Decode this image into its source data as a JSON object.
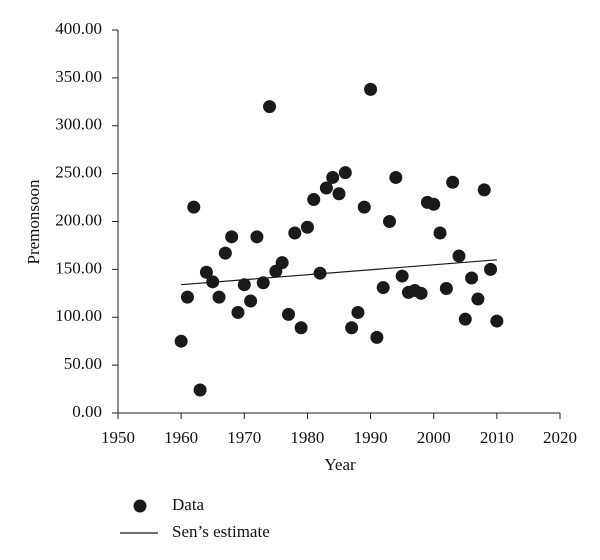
{
  "chart_data": {
    "type": "scatter",
    "x_label": "Year",
    "y_label": "Premonsoon",
    "xlim": [
      1950,
      2020
    ],
    "xticks": [
      1950,
      1960,
      1970,
      1980,
      1990,
      2000,
      2010,
      2020
    ],
    "ylim": [
      0,
      400
    ],
    "yticks": [
      {
        "value": 0,
        "label": "0.00"
      },
      {
        "value": 50,
        "label": "50.00"
      },
      {
        "value": 100,
        "label": "100.00"
      },
      {
        "value": 150,
        "label": "150.00"
      },
      {
        "value": 200,
        "label": "200.00"
      },
      {
        "value": 250,
        "label": "250.00"
      },
      {
        "value": 300,
        "label": "300.00"
      },
      {
        "value": 350,
        "label": "350.00"
      },
      {
        "value": 400,
        "label": "400.00"
      }
    ],
    "series": [
      {
        "name": "Data",
        "type": "scatter",
        "color": "#1a1a1a",
        "x": [
          1960,
          1961,
          1962,
          1963,
          1964,
          1965,
          1966,
          1967,
          1968,
          1969,
          1970,
          1971,
          1972,
          1973,
          1974,
          1975,
          1976,
          1977,
          1978,
          1979,
          1980,
          1981,
          1982,
          1983,
          1984,
          1985,
          1986,
          1987,
          1988,
          1989,
          1990,
          1991,
          1992,
          1993,
          1994,
          1995,
          1996,
          1997,
          1998,
          1999,
          2000,
          2001,
          2002,
          2003,
          2004,
          2005,
          2006,
          2007,
          2008,
          2009,
          2010
        ],
        "values": [
          75,
          121,
          215,
          24,
          147,
          137,
          121,
          167,
          184,
          105,
          134,
          117,
          184,
          136,
          320,
          148,
          157,
          103,
          188,
          89,
          194,
          223,
          146,
          235,
          246,
          229,
          251,
          89,
          105,
          215,
          338,
          79,
          131,
          200,
          246,
          143,
          126,
          128,
          125,
          220,
          218,
          188,
          130,
          241,
          164,
          98,
          141,
          119,
          233,
          150,
          96
        ]
      },
      {
        "name": "Sen’s estimate",
        "type": "line",
        "color": "#1a1a1a",
        "x": [
          1960,
          2010
        ],
        "values": [
          134,
          160
        ]
      }
    ]
  }
}
